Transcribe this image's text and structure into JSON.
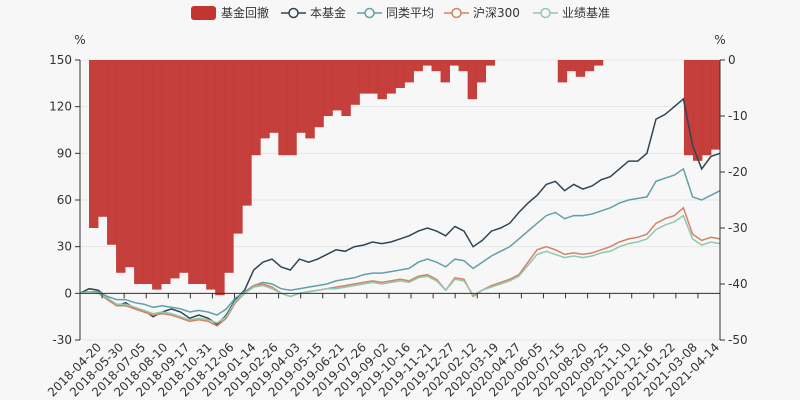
{
  "chart_data": {
    "type": "line",
    "legend": [
      {
        "name": "基金回撤",
        "color": "#c23531",
        "marker": "rect"
      },
      {
        "name": "本基金",
        "color": "#2f4554",
        "marker": "circle-line"
      },
      {
        "name": "同类平均",
        "color": "#61a0a8",
        "marker": "circle-line"
      },
      {
        "name": "沪深300",
        "color": "#d48265",
        "marker": "circle-line"
      },
      {
        "name": "业绩基准",
        "color": "#91c7ae",
        "marker": "circle-line"
      }
    ],
    "legend_position": "top-center",
    "y_left": {
      "unit": "%",
      "ticks": [
        150,
        120,
        90,
        60,
        30,
        0,
        -30
      ],
      "range": [
        -30,
        150
      ]
    },
    "y_right": {
      "unit": "%",
      "ticks": [
        0,
        -10,
        -20,
        -30,
        -40,
        -50
      ],
      "range": [
        -50,
        0
      ]
    },
    "x_ticks": [
      "2018-04-20",
      "2018-05-30",
      "2018-07-05",
      "2018-08-10",
      "2018-09-17",
      "2018-10-31",
      "2018-12-06",
      "2019-01-14",
      "2019-02-26",
      "2019-04-03",
      "2019-05-15",
      "2019-06-21",
      "2019-07-26",
      "2019-09-02",
      "2019-10-16",
      "2019-11-21",
      "2019-12-27",
      "2020-02-12",
      "2020-03-19",
      "2020-04-27",
      "2020-06-05",
      "2020-07-15",
      "2020-08-20",
      "2020-09-25",
      "2020-11-10",
      "2020-12-16",
      "2021-01-22",
      "2021-03-08",
      "2021-04-14"
    ],
    "series": [
      {
        "name": "本基金",
        "axis": "left",
        "color": "#2f4554",
        "values": [
          0,
          3,
          2,
          -3,
          -8,
          -6,
          -10,
          -11,
          -15,
          -12,
          -10,
          -12,
          -16,
          -14,
          -16,
          -20,
          -14,
          -4,
          2,
          15,
          20,
          22,
          17,
          15,
          22,
          20,
          22,
          25,
          28,
          27,
          30,
          31,
          33,
          32,
          33,
          35,
          37,
          40,
          42,
          40,
          37,
          43,
          40,
          30,
          34,
          40,
          42,
          45,
          52,
          58,
          63,
          70,
          72,
          66,
          70,
          67,
          69,
          73,
          75,
          80,
          85,
          85,
          90,
          112,
          115,
          120,
          125,
          95,
          80,
          88,
          90
        ]
      },
      {
        "name": "同类平均",
        "axis": "left",
        "color": "#61a0a8",
        "values": [
          0,
          1,
          1,
          -2,
          -4,
          -4,
          -6,
          -7,
          -9,
          -8,
          -9,
          -10,
          -12,
          -11,
          -12,
          -14,
          -10,
          -3,
          1,
          5,
          7,
          6,
          3,
          2,
          3,
          4,
          5,
          6,
          8,
          9,
          10,
          12,
          13,
          13,
          14,
          15,
          16,
          20,
          22,
          20,
          17,
          22,
          21,
          16,
          20,
          24,
          27,
          30,
          35,
          40,
          45,
          50,
          52,
          48,
          50,
          50,
          51,
          53,
          55,
          58,
          60,
          61,
          62,
          72,
          74,
          76,
          80,
          62,
          60,
          63,
          66
        ]
      },
      {
        "name": "沪深300",
        "axis": "left",
        "color": "#d48265",
        "values": [
          0,
          1,
          0,
          -4,
          -8,
          -8,
          -10,
          -12,
          -14,
          -13,
          -14,
          -16,
          -18,
          -17,
          -18,
          -21,
          -16,
          -6,
          0,
          5,
          6,
          4,
          0,
          -2,
          0,
          1,
          2,
          3,
          4,
          5,
          6,
          7,
          8,
          7,
          8,
          9,
          8,
          11,
          12,
          9,
          2,
          10,
          9,
          -2,
          2,
          5,
          7,
          9,
          12,
          20,
          28,
          30,
          28,
          25,
          26,
          25,
          26,
          28,
          30,
          33,
          35,
          36,
          38,
          45,
          48,
          50,
          55,
          38,
          34,
          36,
          35
        ]
      },
      {
        "name": "业绩基准",
        "axis": "left",
        "color": "#91c7ae",
        "values": [
          0,
          1,
          0,
          -3,
          -7,
          -7,
          -9,
          -11,
          -13,
          -12,
          -13,
          -15,
          -17,
          -16,
          -17,
          -19,
          -15,
          -5,
          0,
          4,
          5,
          3,
          0,
          -2,
          0,
          1,
          2,
          3,
          3,
          4,
          5,
          6,
          7,
          6,
          7,
          8,
          7,
          10,
          11,
          8,
          2,
          9,
          8,
          -1,
          2,
          4,
          6,
          8,
          11,
          18,
          25,
          27,
          25,
          23,
          24,
          23,
          24,
          26,
          27,
          30,
          32,
          33,
          35,
          41,
          44,
          46,
          50,
          35,
          31,
          33,
          32
        ]
      },
      {
        "name": "基金回撤",
        "axis": "right",
        "type": "bar",
        "color": "#c23531",
        "values": [
          0,
          -30,
          -28,
          -33,
          -38,
          -37,
          -40,
          -40,
          -41,
          -40,
          -39,
          -38,
          -40,
          -40,
          -41,
          -42,
          -38,
          -31,
          -26,
          -17,
          -14,
          -13,
          -17,
          -17,
          -13,
          -14,
          -12,
          -10,
          -9,
          -10,
          -8,
          -6,
          -6,
          -7,
          -6,
          -5,
          -4,
          -2,
          -1,
          -2,
          -4,
          -1,
          -2,
          -7,
          -4,
          -1,
          0,
          0,
          0,
          0,
          0,
          0,
          0,
          -4,
          -2,
          -3,
          -2,
          -1,
          0,
          0,
          0,
          0,
          0,
          0,
          0,
          0,
          0,
          -17,
          -18,
          -17,
          -16
        ]
      }
    ]
  }
}
